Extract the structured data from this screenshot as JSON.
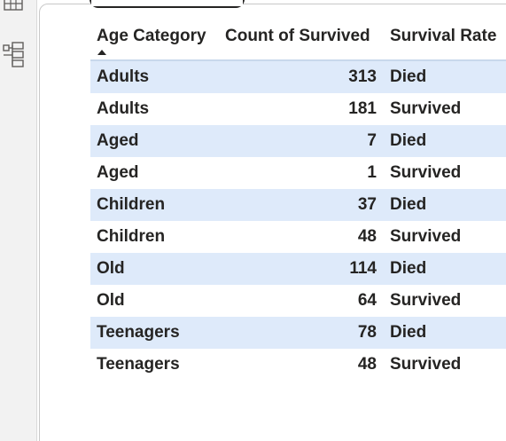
{
  "table": {
    "columns": [
      "Age Category",
      "Count of Survived",
      "Survival Rate"
    ],
    "sort": {
      "column": "Age Category",
      "direction": "ascending"
    },
    "rows": [
      {
        "age_category": "Adults",
        "count": "313",
        "rate": "Died"
      },
      {
        "age_category": "Adults",
        "count": "181",
        "rate": "Survived"
      },
      {
        "age_category": "Aged",
        "count": "7",
        "rate": "Died"
      },
      {
        "age_category": "Aged",
        "count": "1",
        "rate": "Survived"
      },
      {
        "age_category": "Children",
        "count": "37",
        "rate": "Died"
      },
      {
        "age_category": "Children",
        "count": "48",
        "rate": "Survived"
      },
      {
        "age_category": "Old",
        "count": "114",
        "rate": "Died"
      },
      {
        "age_category": "Old",
        "count": "64",
        "rate": "Survived"
      },
      {
        "age_category": "Teenagers",
        "count": "78",
        "rate": "Died"
      },
      {
        "age_category": "Teenagers",
        "count": "48",
        "rate": "Survived"
      }
    ]
  },
  "side_pane": {
    "icons": [
      "table-icon",
      "hierarchy-icon"
    ]
  },
  "colors": {
    "band": "#deeafa",
    "text": "#252423",
    "header_border": "#c8d8ec",
    "pane_bg": "#f2f2f2"
  }
}
